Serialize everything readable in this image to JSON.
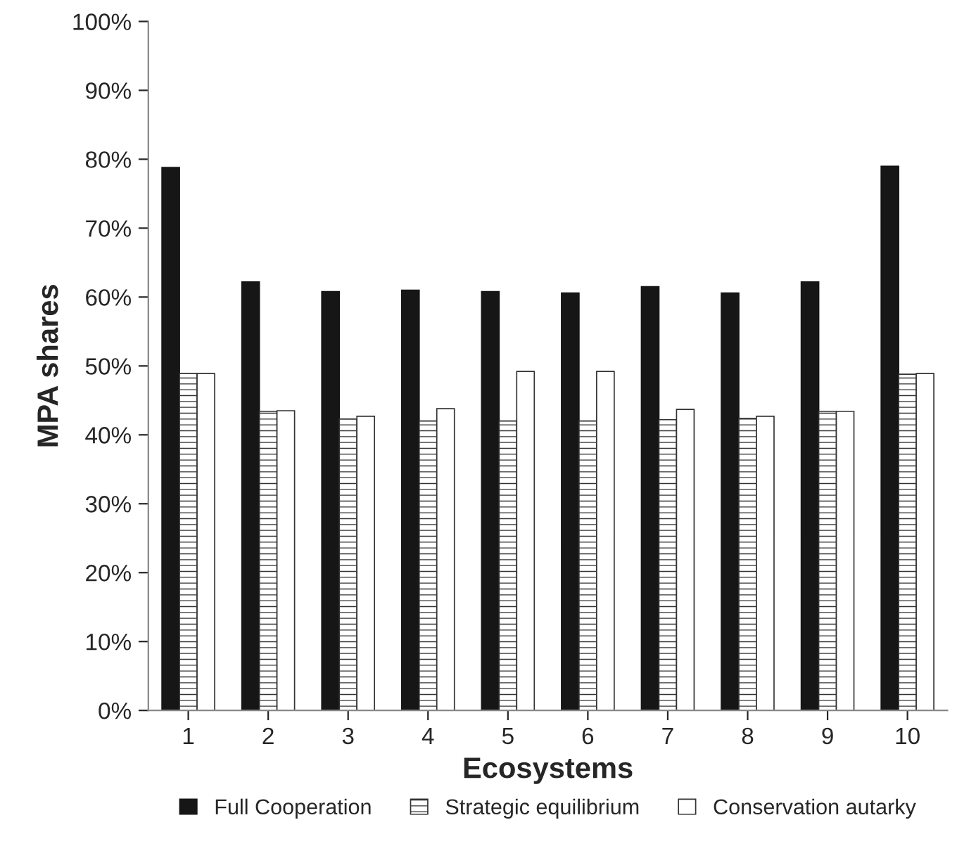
{
  "chart_data": {
    "type": "bar",
    "xlabel": "Ecosystems",
    "ylabel": "MPA shares",
    "categories": [
      "1",
      "2",
      "3",
      "4",
      "5",
      "6",
      "7",
      "8",
      "9",
      "10"
    ],
    "series": [
      {
        "name": "Full Cooperation",
        "color": "#161616",
        "values": [
          78.8,
          62.2,
          60.8,
          61.0,
          60.8,
          60.6,
          61.5,
          60.6,
          62.2,
          79.0
        ]
      },
      {
        "name": "Strategic equilibrium",
        "color": "#333333",
        "values": [
          48.9,
          43.4,
          42.3,
          42.0,
          42.0,
          42.0,
          42.2,
          42.4,
          43.4,
          48.8
        ]
      },
      {
        "name": "Conservation autarky",
        "color": "#333333",
        "values": [
          48.9,
          43.5,
          42.7,
          43.8,
          49.2,
          49.2,
          43.7,
          42.7,
          43.4,
          48.9
        ]
      }
    ],
    "ylim": [
      0,
      100
    ],
    "yticks": [
      {
        "value": 0,
        "label": "0%"
      },
      {
        "value": 10,
        "label": "10%"
      },
      {
        "value": 20,
        "label": "20%"
      },
      {
        "value": 30,
        "label": "30%"
      },
      {
        "value": 40,
        "label": "40%"
      },
      {
        "value": 50,
        "label": "50%"
      },
      {
        "value": 60,
        "label": "60%"
      },
      {
        "value": 70,
        "label": "70%"
      },
      {
        "value": 80,
        "label": "80%"
      },
      {
        "value": 90,
        "label": "90%"
      },
      {
        "value": 100,
        "label": "100%"
      }
    ],
    "grid": false,
    "legend": "bottom"
  }
}
